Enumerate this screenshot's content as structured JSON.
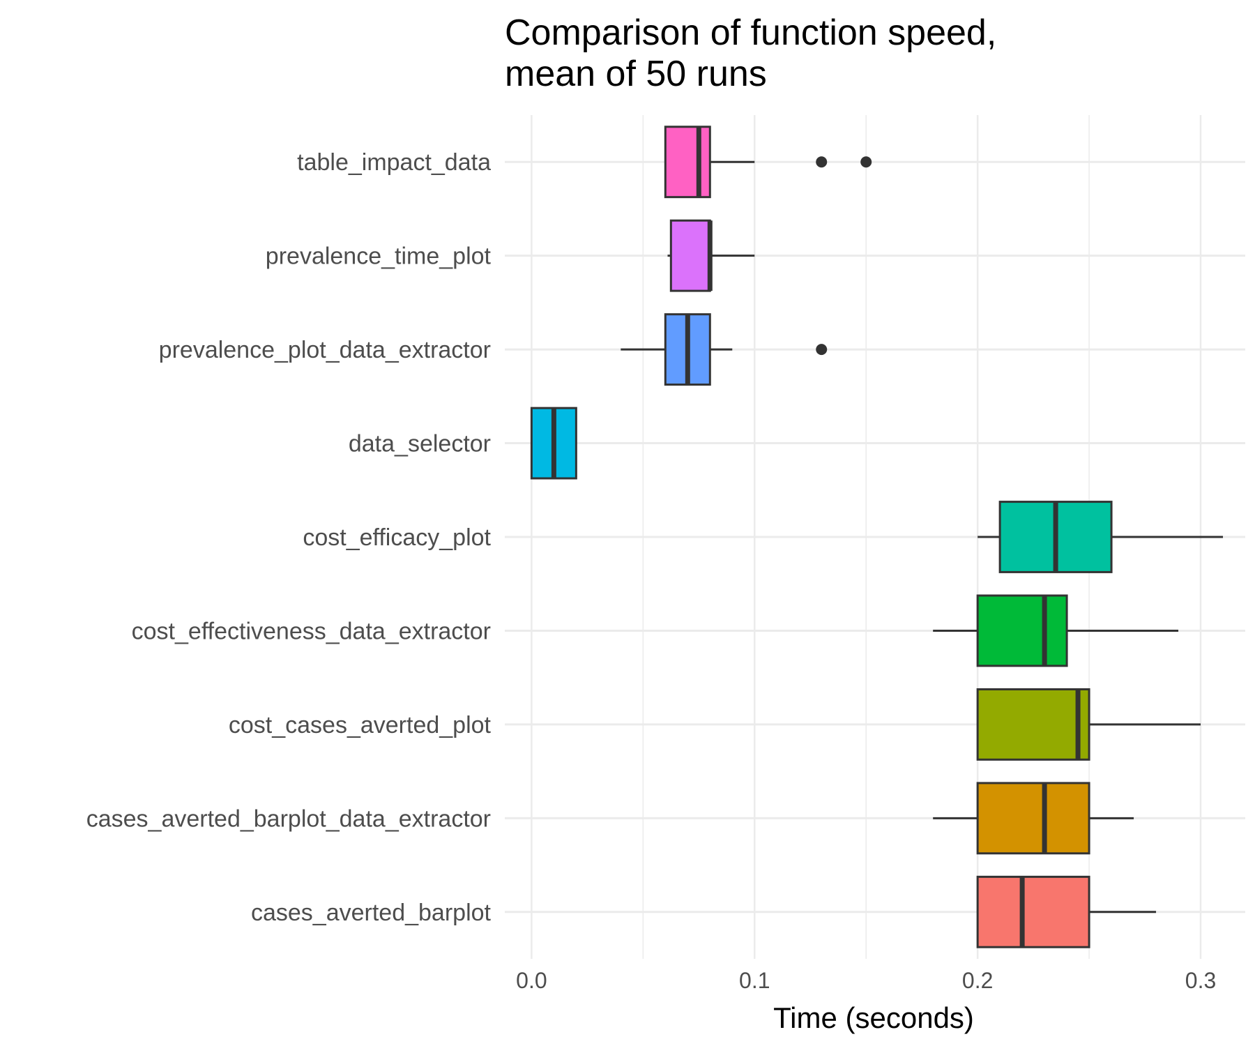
{
  "chart_data": {
    "type": "boxplot",
    "orientation": "horizontal",
    "title_lines": [
      "Comparison of function speed,",
      "mean of 50 runs"
    ],
    "xlabel": "Time (seconds)",
    "ylabel": "",
    "xlim": [
      -0.012,
      0.32
    ],
    "x_ticks": [
      0.0,
      0.1,
      0.2,
      0.3
    ],
    "x_tick_labels": [
      "0.0",
      "0.1",
      "0.2",
      "0.3"
    ],
    "grid": true,
    "legend": "none",
    "categories": [
      "table_impact_data",
      "prevalence_time_plot",
      "prevalence_plot_data_extractor",
      "data_selector",
      "cost_efficacy_plot",
      "cost_effectiveness_data_extractor",
      "cost_cases_averted_plot",
      "cases_averted_barplot_data_extractor",
      "cases_averted_barplot"
    ],
    "boxes": [
      {
        "category": "table_impact_data",
        "whisker_low": 0.06,
        "q1": 0.06,
        "median": 0.075,
        "q3": 0.08,
        "whisker_high": 0.1,
        "outliers": [
          0.13,
          0.15
        ],
        "color": "#FF61C3"
      },
      {
        "category": "prevalence_time_plot",
        "whisker_low": 0.061,
        "q1": 0.0625,
        "median": 0.08,
        "q3": 0.08,
        "whisker_high": 0.1,
        "outliers": [],
        "color": "#DB72FB"
      },
      {
        "category": "prevalence_plot_data_extractor",
        "whisker_low": 0.04,
        "q1": 0.06,
        "median": 0.07,
        "q3": 0.08,
        "whisker_high": 0.09,
        "outliers": [
          0.13
        ],
        "color": "#619CFF"
      },
      {
        "category": "data_selector",
        "whisker_low": 0.0,
        "q1": 0.0,
        "median": 0.01,
        "q3": 0.02,
        "whisker_high": 0.02,
        "outliers": [],
        "color": "#00B9E3"
      },
      {
        "category": "cost_efficacy_plot",
        "whisker_low": 0.2,
        "q1": 0.21,
        "median": 0.235,
        "q3": 0.26,
        "whisker_high": 0.31,
        "outliers": [],
        "color": "#00C19F"
      },
      {
        "category": "cost_effectiveness_data_extractor",
        "whisker_low": 0.18,
        "q1": 0.2,
        "median": 0.23,
        "q3": 0.24,
        "whisker_high": 0.29,
        "outliers": [],
        "color": "#00BA38"
      },
      {
        "category": "cost_cases_averted_plot",
        "whisker_low": 0.2,
        "q1": 0.2,
        "median": 0.245,
        "q3": 0.25,
        "whisker_high": 0.3,
        "outliers": [],
        "color": "#93AA00"
      },
      {
        "category": "cases_averted_barplot_data_extractor",
        "whisker_low": 0.18,
        "q1": 0.2,
        "median": 0.23,
        "q3": 0.25,
        "whisker_high": 0.27,
        "outliers": [],
        "color": "#D39200"
      },
      {
        "category": "cases_averted_barplot",
        "whisker_low": 0.2,
        "q1": 0.2,
        "median": 0.22,
        "q3": 0.25,
        "whisker_high": 0.28,
        "outliers": [],
        "color": "#F8766D"
      }
    ]
  }
}
